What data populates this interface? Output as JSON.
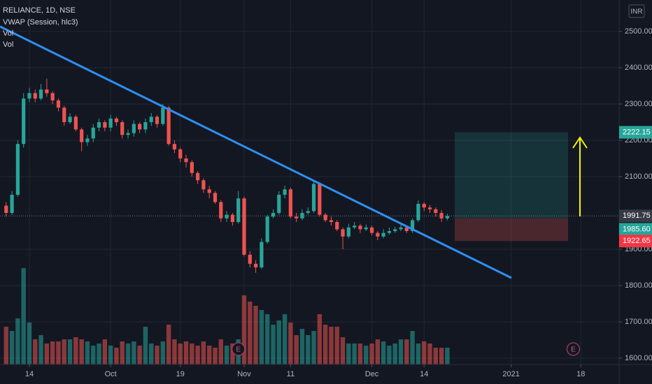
{
  "chart_data": {
    "type": "candlestick",
    "title": "RELIANCE, 1D, NSE",
    "indicators": [
      "VWAP (Session, hlc3)",
      "Vol",
      "Vol"
    ],
    "currency": "INR",
    "up_color": "#26a69a",
    "down_color": "#ef5350",
    "grid": true,
    "open": [
      2020,
      2000,
      2050,
      2190,
      2315,
      2330,
      2315,
      2340,
      2330,
      2310,
      2290,
      2250,
      2265,
      2230,
      2195,
      2205,
      2235,
      2250,
      2235,
      2260,
      2250,
      2215,
      2220,
      2245,
      2230,
      2250,
      2265,
      2245,
      2290,
      2190,
      2175,
      2150,
      2140,
      2110,
      2090,
      2065,
      2055,
      2030,
      1985,
      1995,
      1975,
      2040,
      1885,
      1860,
      1850,
      1920,
      1990,
      2000,
      2050,
      2065,
      1990,
      1985,
      2000,
      2005,
      2080,
      1995,
      1980,
      1975,
      1955,
      1935,
      1960,
      1965,
      1955,
      1960,
      1945,
      1935,
      1945,
      1950,
      1955,
      1960,
      1950,
      1980,
      2025,
      2015,
      2010,
      2000,
      1985
    ],
    "high": [
      2030,
      2060,
      2200,
      2330,
      2345,
      2340,
      2355,
      2370,
      2335,
      2315,
      2295,
      2275,
      2270,
      2235,
      2215,
      2245,
      2260,
      2255,
      2270,
      2265,
      2255,
      2230,
      2255,
      2250,
      2260,
      2275,
      2270,
      2300,
      2295,
      2200,
      2180,
      2160,
      2145,
      2115,
      2095,
      2075,
      2060,
      2035,
      2005,
      2000,
      2060,
      2045,
      1895,
      1870,
      1930,
      1995,
      2010,
      2060,
      2075,
      2070,
      2000,
      2010,
      2015,
      2090,
      2085,
      2000,
      1990,
      1980,
      1960,
      1970,
      1975,
      1970,
      1968,
      1965,
      1950,
      1955,
      1960,
      1962,
      1968,
      1965,
      1985,
      2035,
      2030,
      2022,
      2015,
      2008,
      1998
    ],
    "low": [
      1990,
      1995,
      2045,
      2180,
      2305,
      2305,
      2310,
      2320,
      2300,
      2280,
      2240,
      2245,
      2225,
      2170,
      2185,
      2195,
      2225,
      2225,
      2225,
      2240,
      2205,
      2205,
      2210,
      2220,
      2220,
      2240,
      2235,
      2240,
      2185,
      2165,
      2140,
      2125,
      2100,
      2080,
      2055,
      2040,
      2025,
      1975,
      1975,
      1965,
      1970,
      1880,
      1850,
      1835,
      1845,
      1915,
      1985,
      1995,
      2040,
      1985,
      1975,
      1980,
      1995,
      2000,
      1990,
      1975,
      1965,
      1950,
      1900,
      1930,
      1955,
      1945,
      1950,
      1938,
      1925,
      1930,
      1940,
      1945,
      1950,
      1945,
      1945,
      1975,
      2005,
      2000,
      1990,
      1975,
      1980
    ],
    "close": [
      2000,
      2050,
      2190,
      2315,
      2330,
      2315,
      2340,
      2330,
      2310,
      2290,
      2250,
      2265,
      2230,
      2195,
      2205,
      2235,
      2250,
      2235,
      2260,
      2250,
      2215,
      2220,
      2245,
      2230,
      2250,
      2265,
      2245,
      2290,
      2190,
      2175,
      2150,
      2140,
      2110,
      2090,
      2065,
      2055,
      2030,
      1985,
      1995,
      1975,
      2040,
      1885,
      1860,
      1850,
      1920,
      1990,
      2000,
      2050,
      2065,
      1990,
      1985,
      2000,
      2005,
      2080,
      1995,
      1980,
      1975,
      1955,
      1935,
      1960,
      1965,
      1955,
      1960,
      1945,
      1935,
      1945,
      1950,
      1955,
      1960,
      1950,
      1980,
      2025,
      2015,
      2010,
      2000,
      1985,
      1991.75
    ],
    "volume": [
      18,
      16,
      22,
      46,
      20,
      12,
      14,
      10,
      11,
      11,
      12,
      12,
      13,
      12,
      11,
      9,
      10,
      12,
      9,
      8,
      11,
      10,
      11,
      9,
      18,
      10,
      9,
      11,
      19,
      12,
      10,
      11,
      10,
      9,
      11,
      9,
      8,
      12,
      9,
      10,
      12,
      33,
      30,
      28,
      26,
      24,
      19,
      21,
      24,
      20,
      14,
      17,
      14,
      16,
      24,
      19,
      18,
      18,
      13,
      10,
      10,
      10,
      9,
      10,
      12,
      11,
      9,
      10,
      12,
      12,
      16,
      10,
      11,
      10,
      8,
      8,
      8
    ],
    "volume_lim": [
      0,
      50
    ],
    "xlim": [
      -1.06,
      105.6
    ],
    "xticks": [
      {
        "value": 4,
        "label": "14"
      },
      {
        "value": 18,
        "label": "Oct"
      },
      {
        "value": 30,
        "label": "19"
      },
      {
        "value": 41,
        "label": "Nov"
      },
      {
        "value": 49,
        "label": "11"
      },
      {
        "value": 63,
        "label": "Dec"
      },
      {
        "value": 72,
        "label": "14"
      },
      {
        "value": 87,
        "label": "2021"
      },
      {
        "value": 99,
        "label": "18"
      }
    ],
    "ylim": [
      1582.7,
      2586.5
    ],
    "yticks": [
      {
        "value": 1600,
        "label": "1600.00"
      },
      {
        "value": 1700,
        "label": "1700.00"
      },
      {
        "value": 1800,
        "label": "1800.00"
      },
      {
        "value": 1900,
        "label": "1900.00"
      },
      {
        "value": 2100,
        "label": "2100.00"
      },
      {
        "value": 2200,
        "label": "2200.00"
      },
      {
        "value": 2300,
        "label": "2300.00"
      },
      {
        "value": 2400,
        "label": "2400.00"
      },
      {
        "value": 2500,
        "label": "2500.00"
      }
    ],
    "price_labels": [
      {
        "value": 2222.15,
        "label": "2222.15",
        "color": "#26a69a"
      },
      {
        "value": 1991.75,
        "label": "1991.75",
        "color": "#363a45"
      },
      {
        "value": 1985.6,
        "label": "1985.60",
        "color": "#26a69a"
      },
      {
        "value": 1922.65,
        "label": "1922.65",
        "color": "#f23645"
      }
    ],
    "earnings": [
      {
        "x": 40,
        "label": "E"
      },
      {
        "x": 97.7,
        "label": "E"
      }
    ]
  }
}
